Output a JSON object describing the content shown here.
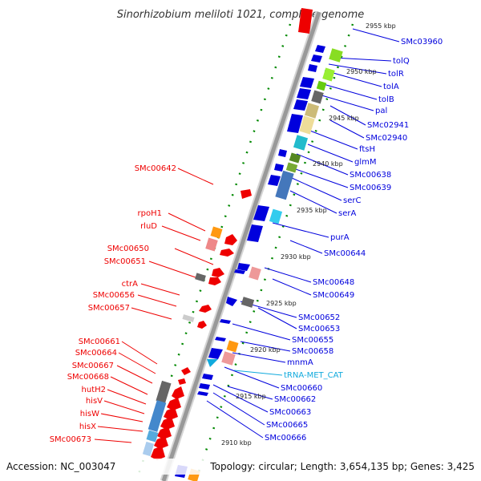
{
  "title": "Sinorhizobium meliloti 1021, complete genome",
  "footer": {
    "accession": "Accession: NC_003047",
    "topology": "Topology: circular; Length: 3,654,135 bp; Genes: 3,425"
  },
  "colors": {
    "forward": "#0000dd",
    "reverse": "#ee0000",
    "trna": "#11aadd",
    "ticks": "#008800",
    "backbone": "#999999"
  },
  "kbp_labels": [
    "2955 kbp",
    "2950 kbp",
    "2945 kbp",
    "2940 kbp",
    "2935 kbp",
    "2930 kbp",
    "2925 kbp",
    "2920 kbp",
    "2915 kbp",
    "2910 kbp"
  ],
  "labels_right": [
    "SMc03960",
    "tolQ",
    "tolR",
    "tolA",
    "tolB",
    "pal",
    "SMc02941",
    "SMc02940",
    "ftsH",
    "glmM",
    "SMc00638",
    "SMc00639",
    "serC",
    "serA",
    "purA",
    "SMc00644",
    "SMc00648",
    "SMc00649",
    "SMc00652",
    "SMc00653",
    "SMc00655",
    "SMc00658",
    "mnmA",
    "tRNA-MET_CAT",
    "SMc00660",
    "SMc00662",
    "SMc00663",
    "SMc00665",
    "SMc00666"
  ],
  "labels_left": [
    "SMc00642",
    "rpoH1",
    "rluD",
    "SMc00650",
    "SMc00651",
    "ctrA",
    "SMc00656",
    "SMc00657",
    "SMc00661",
    "SMc00664",
    "SMc00667",
    "SMc00668",
    "hutH2",
    "hisV",
    "hisW",
    "hisX",
    "SMc00673"
  ]
}
